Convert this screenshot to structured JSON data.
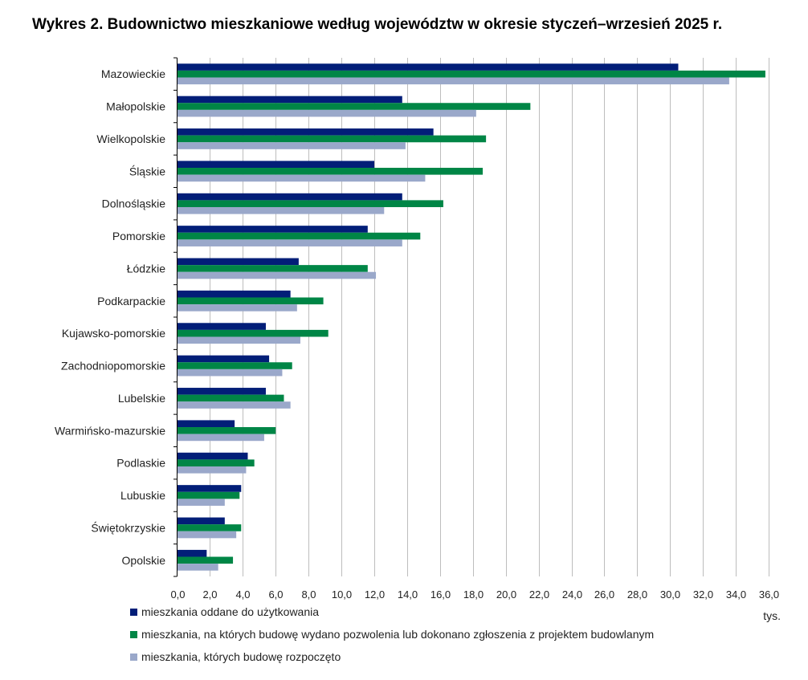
{
  "chart_data": {
    "type": "bar",
    "orientation": "horizontal",
    "title": "Wykres 2. Budownictwo mieszkaniowe według województw w okresie styczeń–wrzesień 2025 r.",
    "xlabel": "tys.",
    "ylabel": "",
    "xlim": [
      0,
      36
    ],
    "xticks": [
      "0,0",
      "2,0",
      "4,0",
      "6,0",
      "8,0",
      "10,0",
      "12,0",
      "14,0",
      "16,0",
      "18,0",
      "20,0",
      "22,0",
      "24,0",
      "26,0",
      "28,0",
      "30,0",
      "32,0",
      "34,0",
      "36,0"
    ],
    "grid": true,
    "legend_position": "bottom",
    "categories": [
      "Mazowieckie",
      "Małopolskie",
      "Wielkopolskie",
      "Śląskie",
      "Dolnośląskie",
      "Pomorskie",
      "Łódzkie",
      "Podkarpackie",
      "Kujawsko-pomorskie",
      "Zachodniopomorskie",
      "Lubelskie",
      "Warmińsko-mazurskie",
      "Podlaskie",
      "Lubuskie",
      "Świętokrzyskie",
      "Opolskie"
    ],
    "series": [
      {
        "name": "mieszkania oddane do użytkowania",
        "color": "#021e78",
        "values": [
          30.5,
          13.7,
          15.6,
          12.0,
          13.7,
          11.6,
          7.4,
          6.9,
          5.4,
          5.6,
          5.4,
          3.5,
          4.3,
          3.9,
          2.9,
          1.8
        ]
      },
      {
        "name": "mieszkania, na których budowę wydano pozwolenia lub dokonano zgłoszenia z projektem budowlanym",
        "color": "#008646",
        "values": [
          35.8,
          21.5,
          18.8,
          18.6,
          16.2,
          14.8,
          11.6,
          8.9,
          9.2,
          7.0,
          6.5,
          6.0,
          4.7,
          3.8,
          3.9,
          3.4
        ]
      },
      {
        "name": "mieszkania, których budowę rozpoczęto",
        "color": "#9aa8ca",
        "values": [
          33.6,
          18.2,
          13.9,
          15.1,
          12.6,
          13.7,
          12.1,
          7.3,
          7.5,
          6.4,
          6.9,
          5.3,
          4.2,
          2.9,
          3.6,
          2.5
        ]
      }
    ]
  }
}
